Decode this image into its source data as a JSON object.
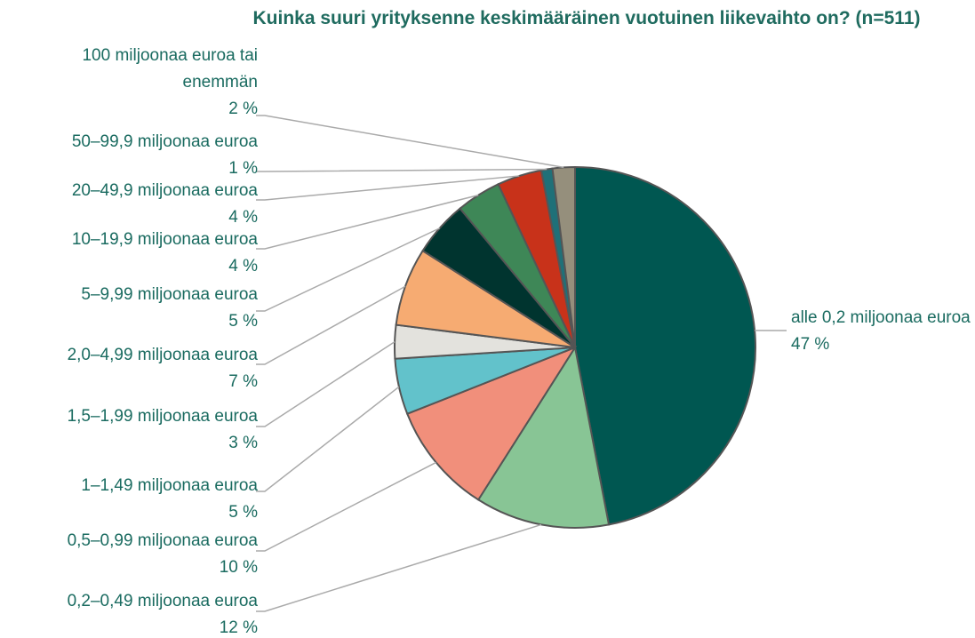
{
  "chart_data": {
    "type": "pie",
    "title": "Kuinka suuri yrityksenne keskimääräinen vuotuinen liikevaihto on? (n=511)",
    "categories": [
      "alle 0,2 miljoonaa euroa",
      "0,2–0,49 miljoonaa euroa",
      "0,5–0,99 miljoonaa euroa",
      "1–1,49 miljoonaa euroa",
      "1,5–1,99 miljoonaa euroa",
      "2,0–4,99 miljoonaa euroa",
      "5–9,99 miljoonaa euroa",
      "10–19,9 miljoonaa euroa",
      "20–49,9 miljoonaa euroa",
      "50–99,9 miljoonaa euroa",
      "100 miljoonaa euroa tai enemmän"
    ],
    "values": [
      47,
      12,
      10,
      5,
      3,
      7,
      5,
      4,
      4,
      1,
      2
    ],
    "value_labels": [
      "47 %",
      "12 %",
      "10 %",
      "5 %",
      "3 %",
      "7 %",
      "5 %",
      "4 %",
      "4 %",
      "1 %",
      "2 %"
    ],
    "colors": [
      "#005751",
      "#88c595",
      "#f18f7b",
      "#62c2cb",
      "#e3e2dd",
      "#f6ab72",
      "#00342f",
      "#3e8757",
      "#c8321a",
      "#1f7078",
      "#958f7c"
    ]
  }
}
